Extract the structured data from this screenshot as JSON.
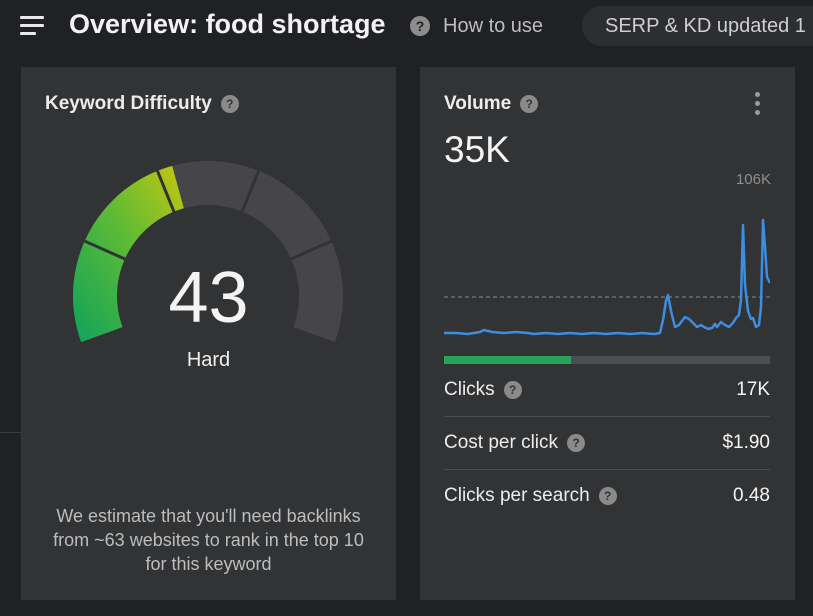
{
  "header": {
    "title": "Overview: food shortage",
    "how_to_use": "How to use",
    "serp_status": "SERP & KD updated 1"
  },
  "keyword_difficulty": {
    "title": "Keyword Difficulty",
    "value": "43",
    "level": "Hard",
    "score": 43,
    "estimate": "We estimate that you'll need backlinks from ~63 websites to rank in the top 10 for this keyword"
  },
  "volume": {
    "title": "Volume",
    "value": "35K",
    "max_label": "106K",
    "clicks_fraction": 0.39,
    "metrics": [
      {
        "label": "Clicks",
        "value": "17K"
      },
      {
        "label": "Cost per click",
        "value": "$1.90"
      },
      {
        "label": "Clicks per search",
        "value": "0.48"
      }
    ]
  },
  "colors": {
    "gauge_low": "#0fa35c",
    "gauge_mid": "#5fbb34",
    "gauge_high": "#c6c711",
    "gauge_track": "#464648",
    "trend_line": "#3d8de0",
    "clicks_bar": "#27a35a"
  }
}
